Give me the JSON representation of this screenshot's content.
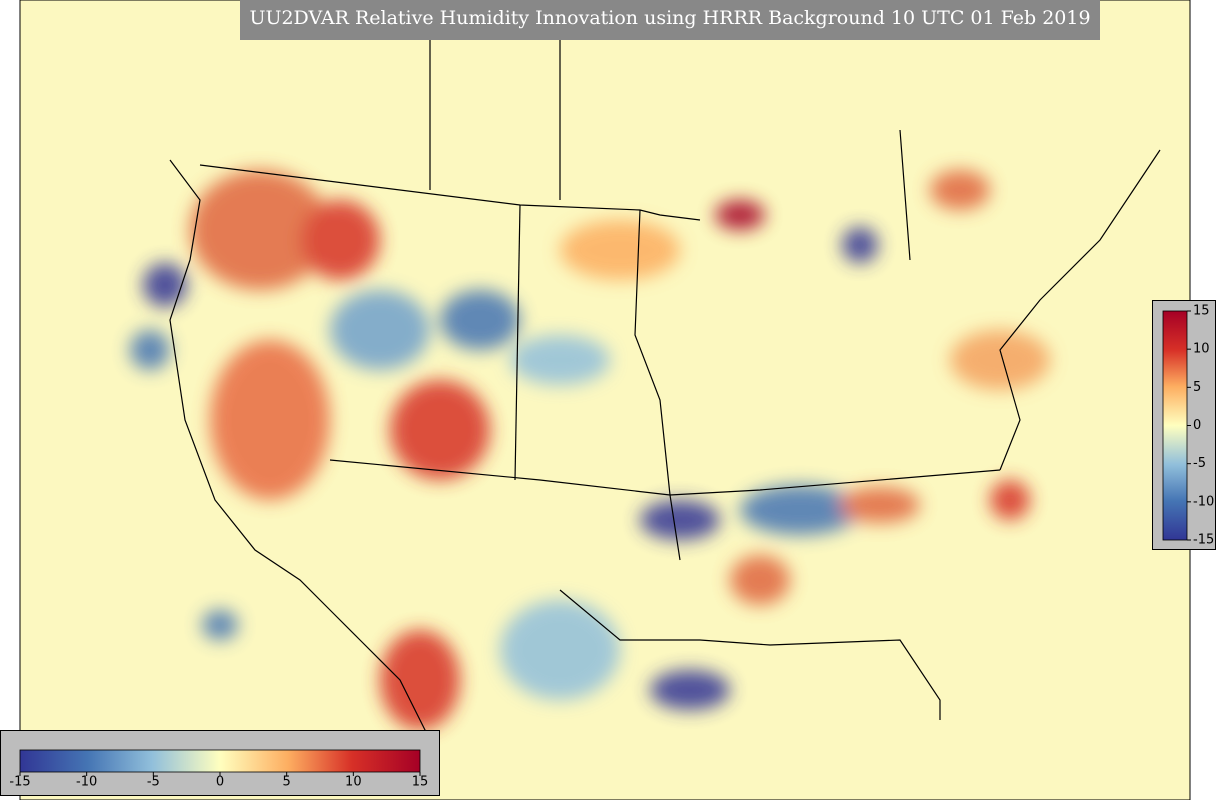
{
  "title": "UU2DVAR Relative Humidity Innovation using HRRR Background 10 UTC 01 Feb 2019",
  "bottom_colorbar": {
    "lim": [
      -15,
      15
    ],
    "ticks": [
      -15,
      -10,
      -5,
      0,
      5,
      10,
      15
    ]
  },
  "right_colorbar": {
    "lim": [
      -15,
      15
    ],
    "ticks": [
      15,
      10,
      5,
      0,
      -5,
      -10,
      -15
    ]
  }
}
